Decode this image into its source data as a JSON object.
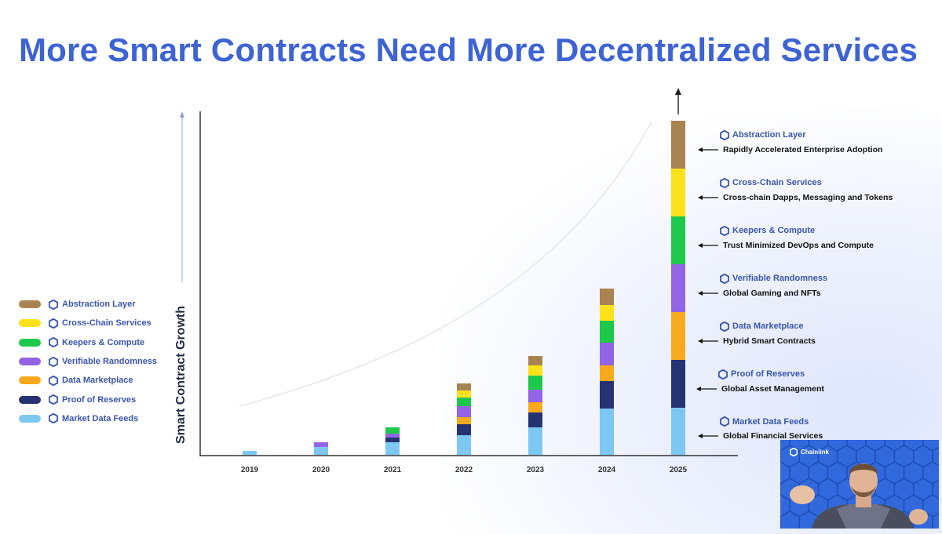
{
  "title": "More Smart Contracts Need More Decentralized Services",
  "colors": {
    "Abstraction Layer": "#a98351",
    "Cross-Chain Services": "#fde21b",
    "Keepers & Compute": "#1ec84b",
    "Verifiable Randomness": "#9364e6",
    "Data Marketplace": "#f9aa1c",
    "Proof of Reserves": "#253373",
    "Market Data Feeds": "#7cc8f3"
  },
  "legend": [
    {
      "label": "Abstraction Layer",
      "color": "#a98351"
    },
    {
      "label": "Cross-Chain Services",
      "color": "#fde21b"
    },
    {
      "label": "Keepers & Compute",
      "color": "#1ec84b"
    },
    {
      "label": "Verifiable Randomness",
      "color": "#9364e6"
    },
    {
      "label": "Data Marketplace",
      "color": "#f9aa1c"
    },
    {
      "label": "Proof of Reserves",
      "color": "#253373"
    },
    {
      "label": "Market Data Feeds",
      "color": "#7cc8f3"
    }
  ],
  "annotations": [
    {
      "service": "Abstraction Layer",
      "description": "Rapidly Accelerated Enterprise Adoption"
    },
    {
      "service": "Cross-Chain Services",
      "description": "Cross-chain Dapps, Messaging and Tokens"
    },
    {
      "service": "Keepers & Compute",
      "description": "Trust Minimized DevOps and Compute"
    },
    {
      "service": "Verifiable Randomness",
      "description": "Global Gaming and NFTs"
    },
    {
      "service": "Data Marketplace",
      "description": "Hybrid Smart Contracts"
    },
    {
      "service": "Proof of Reserves",
      "description": "Global Asset Management"
    },
    {
      "service": "Market Data Feeds",
      "description": "Global Financial Services"
    }
  ],
  "chart_data": {
    "type": "bar",
    "stacked": true,
    "title": "More Smart Contracts Need More Decentralized Services",
    "xlabel": "",
    "ylabel": "Smart Contract Growth",
    "categories": [
      "2019",
      "2020",
      "2021",
      "2022",
      "2023",
      "2024",
      "2025"
    ],
    "series": [
      {
        "name": "Market Data Feeds",
        "values": [
          5,
          10,
          16,
          25,
          35,
          59,
          60
        ]
      },
      {
        "name": "Proof of Reserves",
        "values": [
          0,
          0,
          6,
          14,
          19,
          35,
          61
        ]
      },
      {
        "name": "Data Marketplace",
        "values": [
          0,
          0,
          0,
          9,
          13,
          20,
          61
        ]
      },
      {
        "name": "Verifiable Randomness",
        "values": [
          0,
          6,
          5,
          14,
          16,
          29,
          61
        ]
      },
      {
        "name": "Keepers & Compute",
        "values": [
          0,
          0,
          8,
          11,
          18,
          28,
          61
        ]
      },
      {
        "name": "Cross-Chain Services",
        "values": [
          0,
          0,
          0,
          9,
          13,
          20,
          61
        ]
      },
      {
        "name": "Abstraction Layer",
        "values": [
          0,
          0,
          0,
          9,
          12,
          21,
          61
        ]
      }
    ],
    "ylim": [
      0,
      440
    ],
    "grid": false,
    "legend_position": "left"
  },
  "webcam": {
    "brand": "Chainlink"
  }
}
